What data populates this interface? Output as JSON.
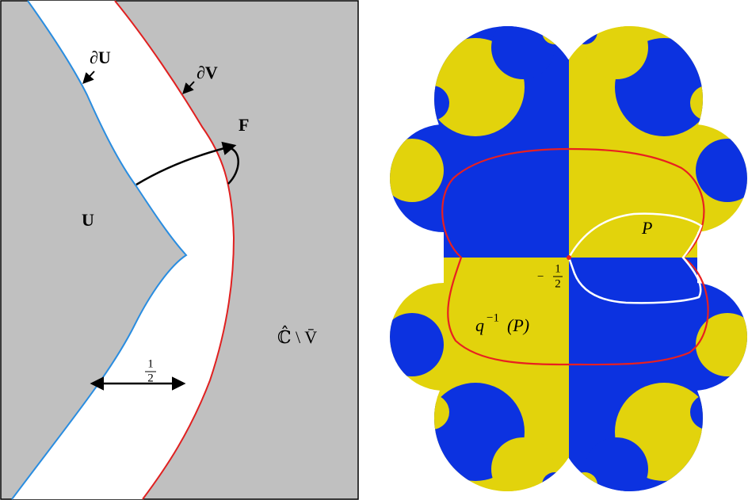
{
  "left_panel": {
    "boundary_U_label": "∂U",
    "boundary_V_label": "∂V",
    "map_label": "F",
    "region_U_label": "U",
    "complement_label": "ℂ̂ \\ V̄",
    "width_label": {
      "numerator": "1",
      "denominator": "2"
    }
  },
  "right_panel": {
    "set_label": "P",
    "point_label": {
      "sign": "−",
      "numerator": "1",
      "denominator": "2"
    },
    "preimage_label": {
      "base": "q",
      "superscript": "−1",
      "argument": "(P)"
    }
  }
}
